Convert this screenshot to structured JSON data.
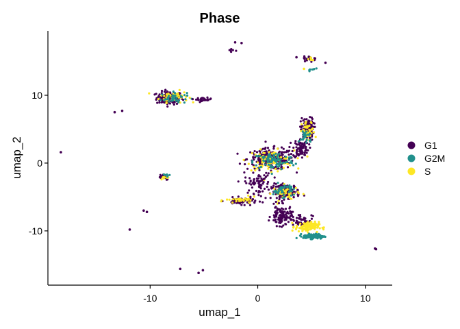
{
  "chart_data": {
    "type": "scatter",
    "title": "Phase",
    "xlabel": "umap_1",
    "ylabel": "umap_2",
    "xlim": [
      -19.5,
      12.5
    ],
    "ylim": [
      -18,
      19.5
    ],
    "x_ticks": [
      -10,
      0,
      10
    ],
    "x_tick_labels": [
      "-10",
      "0",
      "10"
    ],
    "y_ticks": [
      -10,
      0,
      10
    ],
    "y_tick_labels": [
      "-10",
      "0",
      "10"
    ],
    "grid": false,
    "legend_position": "right",
    "series": [
      {
        "name": "G1",
        "color": "#440154"
      },
      {
        "name": "G2M",
        "color": "#21908C"
      },
      {
        "name": "S",
        "color": "#FDE725"
      }
    ],
    "clusters": [
      {
        "series": "G1",
        "cx": -8.2,
        "cy": 9.6,
        "sx": 1.0,
        "sy": 0.8,
        "n": 140
      },
      {
        "series": "S",
        "cx": -7.8,
        "cy": 9.8,
        "sx": 1.1,
        "sy": 0.7,
        "n": 60
      },
      {
        "series": "G2M",
        "cx": -7.8,
        "cy": 9.6,
        "sx": 1.0,
        "sy": 0.7,
        "n": 40
      },
      {
        "series": "G1",
        "cx": -5.0,
        "cy": 9.4,
        "sx": 0.6,
        "sy": 0.2,
        "n": 25
      },
      {
        "series": "G1",
        "cx": 1.2,
        "cy": 0.6,
        "sx": 1.8,
        "sy": 1.3,
        "n": 220
      },
      {
        "series": "S",
        "cx": 1.2,
        "cy": 0.4,
        "sx": 1.8,
        "sy": 1.2,
        "n": 90
      },
      {
        "series": "G2M",
        "cx": 1.5,
        "cy": 0.3,
        "sx": 1.6,
        "sy": 1.1,
        "n": 90
      },
      {
        "series": "G1",
        "cx": 4.0,
        "cy": 2.2,
        "sx": 0.6,
        "sy": 1.2,
        "n": 90
      },
      {
        "series": "G1",
        "cx": 4.6,
        "cy": 5.0,
        "sx": 0.5,
        "sy": 1.4,
        "n": 100
      },
      {
        "series": "S",
        "cx": 4.7,
        "cy": 4.6,
        "sx": 0.5,
        "sy": 1.3,
        "n": 40
      },
      {
        "series": "G2M",
        "cx": 4.5,
        "cy": 4.0,
        "sx": 0.5,
        "sy": 1.0,
        "n": 25
      },
      {
        "series": "G1",
        "cx": 0.0,
        "cy": -3.0,
        "sx": 1.0,
        "sy": 1.2,
        "n": 70
      },
      {
        "series": "G1",
        "cx": 2.6,
        "cy": -4.2,
        "sx": 1.1,
        "sy": 0.9,
        "n": 130
      },
      {
        "series": "S",
        "cx": 2.6,
        "cy": -4.4,
        "sx": 1.0,
        "sy": 0.9,
        "n": 45
      },
      {
        "series": "G2M",
        "cx": 2.4,
        "cy": -4.0,
        "sx": 0.8,
        "sy": 0.8,
        "n": 40
      },
      {
        "series": "G1",
        "cx": -1.5,
        "cy": -5.6,
        "sx": 1.2,
        "sy": 0.4,
        "n": 70
      },
      {
        "series": "S",
        "cx": -1.5,
        "cy": -5.5,
        "sx": 1.2,
        "sy": 0.4,
        "n": 30
      },
      {
        "series": "G1",
        "cx": 2.2,
        "cy": -7.8,
        "sx": 0.8,
        "sy": 1.2,
        "n": 110
      },
      {
        "series": "G1",
        "cx": 4.0,
        "cy": -8.4,
        "sx": 0.9,
        "sy": 0.8,
        "n": 50
      },
      {
        "series": "S",
        "cx": 4.6,
        "cy": -9.4,
        "sx": 0.9,
        "sy": 0.6,
        "n": 110
      },
      {
        "series": "G2M",
        "cx": 5.2,
        "cy": -10.8,
        "sx": 0.8,
        "sy": 0.3,
        "n": 130
      },
      {
        "series": "G1",
        "cx": -8.8,
        "cy": -2.0,
        "sx": 0.5,
        "sy": 0.4,
        "n": 20
      },
      {
        "series": "S",
        "cx": -8.6,
        "cy": -2.0,
        "sx": 0.5,
        "sy": 0.4,
        "n": 10
      },
      {
        "series": "G2M",
        "cx": -8.6,
        "cy": -1.8,
        "sx": 0.4,
        "sy": 0.3,
        "n": 6
      },
      {
        "series": "G1",
        "cx": 4.9,
        "cy": 15.4,
        "sx": 0.5,
        "sy": 0.3,
        "n": 25
      },
      {
        "series": "S",
        "cx": 5.0,
        "cy": 15.3,
        "sx": 0.4,
        "sy": 0.3,
        "n": 6
      },
      {
        "series": "G2M",
        "cx": 5.2,
        "cy": 13.8,
        "sx": 0.4,
        "sy": 0.2,
        "n": 6
      },
      {
        "series": "G1",
        "cx": -2.4,
        "cy": 16.6,
        "sx": 0.3,
        "sy": 0.3,
        "n": 6
      }
    ],
    "points": [
      {
        "series": "G1",
        "x": -18.3,
        "y": 1.6
      },
      {
        "series": "G1",
        "x": -13.3,
        "y": 7.5
      },
      {
        "series": "G1",
        "x": -12.6,
        "y": 7.7
      },
      {
        "series": "G1",
        "x": -10.6,
        "y": -7.0
      },
      {
        "series": "G1",
        "x": -10.3,
        "y": -7.2
      },
      {
        "series": "G1",
        "x": -11.9,
        "y": -9.8
      },
      {
        "series": "G1",
        "x": -7.2,
        "y": -15.6
      },
      {
        "series": "G1",
        "x": -5.5,
        "y": -16.2
      },
      {
        "series": "G1",
        "x": -5.1,
        "y": -15.8
      },
      {
        "series": "G1",
        "x": -2.1,
        "y": 17.8
      },
      {
        "series": "G1",
        "x": -1.5,
        "y": 17.7
      },
      {
        "series": "G1",
        "x": 3.6,
        "y": 15.6
      },
      {
        "series": "G1",
        "x": 6.3,
        "y": 14.8
      },
      {
        "series": "G1",
        "x": 11.0,
        "y": -12.7
      },
      {
        "series": "G1",
        "x": 10.9,
        "y": -12.6
      },
      {
        "series": "G2M",
        "x": 4.8,
        "y": 13.7
      },
      {
        "series": "S",
        "x": 4.3,
        "y": 13.9
      }
    ]
  }
}
